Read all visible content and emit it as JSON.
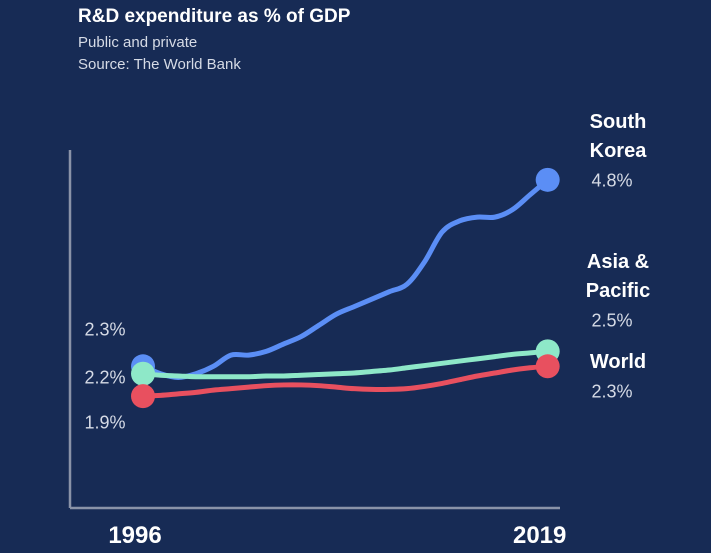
{
  "chart_data": {
    "type": "line",
    "title": "R&D expenditure as % of GDP",
    "subtitle": "Public and private",
    "source": "Source: The World Bank",
    "x": [
      1996,
      1997,
      1998,
      1999,
      2000,
      2001,
      2002,
      2003,
      2004,
      2005,
      2006,
      2007,
      2008,
      2009,
      2010,
      2011,
      2012,
      2013,
      2014,
      2015,
      2016,
      2017,
      2018,
      2019
    ],
    "xlim": [
      1991.85,
      2019.7
    ],
    "xticks": [
      1996,
      2019
    ],
    "ylim": [
      0.4,
      5.2
    ],
    "series": [
      {
        "name": "South Korea",
        "color": "#5b8ef5",
        "values": [
          2.3,
          2.2,
          2.15,
          2.2,
          2.3,
          2.45,
          2.45,
          2.5,
          2.6,
          2.7,
          2.85,
          3.0,
          3.1,
          3.2,
          3.3,
          3.4,
          3.7,
          4.1,
          4.25,
          4.3,
          4.3,
          4.4,
          4.6,
          4.8
        ],
        "value_labels": [
          "2.3%",
          null,
          null,
          null,
          null,
          null,
          null,
          null,
          null,
          null,
          null,
          null,
          null,
          null,
          null,
          null,
          null,
          null,
          null,
          null,
          null,
          null,
          null,
          "4.8%"
        ]
      },
      {
        "name": "Asia & Pacific",
        "color": "#8ee8c8",
        "values": [
          2.2,
          2.18,
          2.17,
          2.16,
          2.16,
          2.16,
          2.16,
          2.17,
          2.17,
          2.18,
          2.19,
          2.2,
          2.21,
          2.23,
          2.25,
          2.28,
          2.31,
          2.34,
          2.37,
          2.4,
          2.43,
          2.46,
          2.48,
          2.5
        ],
        "value_labels": [
          "2.2%",
          null,
          null,
          null,
          null,
          null,
          null,
          null,
          null,
          null,
          null,
          null,
          null,
          null,
          null,
          null,
          null,
          null,
          null,
          null,
          null,
          null,
          null,
          "2.5%"
        ]
      },
      {
        "name": "World",
        "color": "#e8505f",
        "values": [
          1.9,
          1.91,
          1.93,
          1.95,
          1.98,
          2.0,
          2.02,
          2.04,
          2.05,
          2.05,
          2.04,
          2.02,
          2.0,
          1.99,
          1.99,
          2.0,
          2.03,
          2.07,
          2.12,
          2.17,
          2.21,
          2.25,
          2.28,
          2.3
        ],
        "value_labels": [
          "1.9%",
          null,
          null,
          null,
          null,
          null,
          null,
          null,
          null,
          null,
          null,
          null,
          null,
          null,
          null,
          null,
          null,
          null,
          null,
          null,
          null,
          null,
          null,
          "2.3%"
        ]
      }
    ]
  }
}
